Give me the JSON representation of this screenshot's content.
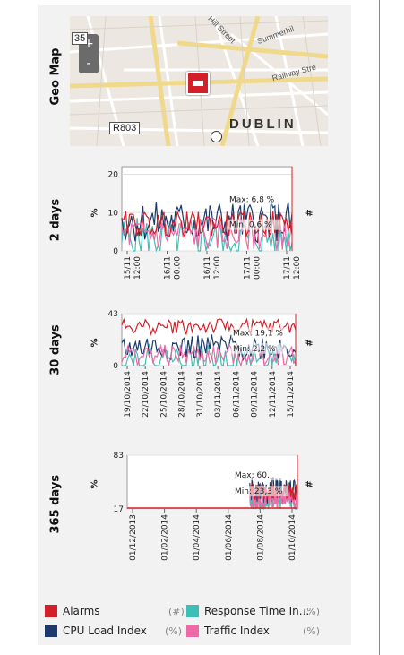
{
  "rows": {
    "map": "Geo Map",
    "d2": "2 days",
    "d30": "30 days",
    "d365": "365 days"
  },
  "map": {
    "labels": {
      "r35": "35",
      "r803": "R803",
      "dublin": "DUBLIN",
      "hill": "Hill Street",
      "summer": "Summerhil",
      "railway": "Railway Stre"
    },
    "zoom_in": "+",
    "zoom_out": "-"
  },
  "charts": [
    {
      "id": "d2",
      "ylabel": "%",
      "y2label": "#",
      "ylim": [
        0,
        22
      ],
      "yticks": [
        "0",
        "10",
        "20"
      ],
      "yticks_values": [
        0,
        10,
        20
      ],
      "xticks": [
        "15/11\n12:00",
        "16/11\n00:00",
        "16/11\n12:00",
        "17/11\n00:00",
        "17/11\n12:00"
      ],
      "max_label": "Max: 6,8 %",
      "min_label": "Min: 0,6 %"
    },
    {
      "id": "d30",
      "ylabel": "%",
      "y2label": "#",
      "ylim": [
        0,
        43
      ],
      "yticks": [
        "0",
        "43"
      ],
      "yticks_values": [
        0,
        43
      ],
      "xticks": [
        "19/10/2014",
        "22/10/2014",
        "25/10/2014",
        "28/10/2014",
        "31/10/2014",
        "03/11/2014",
        "06/11/2014",
        "09/11/2014",
        "12/11/2014",
        "15/11/2014"
      ],
      "max_label": "Max: 19,1 %",
      "min_label": "Min: 2,2 %"
    },
    {
      "id": "d365",
      "ylabel": "%",
      "y2label": "#",
      "ylim": [
        17,
        83
      ],
      "yticks": [
        "17",
        "83"
      ],
      "yticks_values": [
        17,
        83
      ],
      "xticks": [
        "01/12/2013",
        "01/02/2014",
        "01/04/2014",
        "01/06/2014",
        "01/08/2014",
        "01/10/2014"
      ],
      "max_label": "Max: 60,",
      "min_label": "Min: 23,3 %"
    }
  ],
  "legend": [
    {
      "label": "Alarms",
      "unit": "(#)",
      "color": "#d21f2a"
    },
    {
      "label": "Response Time In...",
      "unit": "(%)",
      "color": "#3dbfb8"
    },
    {
      "label": "CPU Load Index",
      "unit": "(%)",
      "color": "#1b3a6b"
    },
    {
      "label": "Traffic Index",
      "unit": "(%)",
      "color": "#ee6aa7"
    }
  ],
  "colors": {
    "alarms": "#d21f2a",
    "response": "#3dbfb8",
    "cpu": "#1b3a6b",
    "traffic": "#ee6aa7"
  }
}
